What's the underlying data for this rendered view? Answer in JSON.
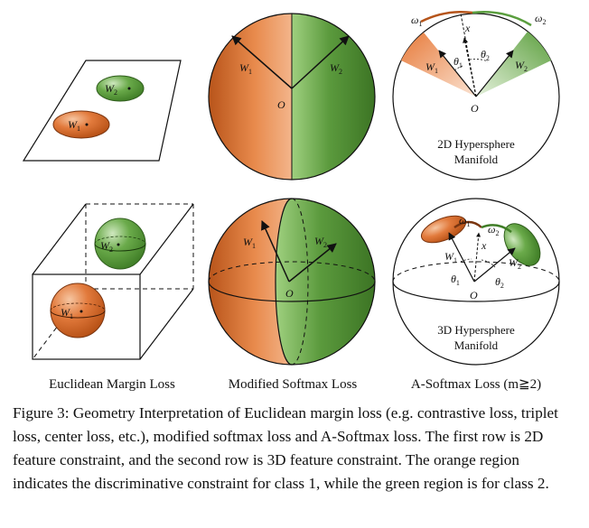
{
  "panels": {
    "col1_label": "Euclidean Margin Loss",
    "col2_label": "Modified Softmax Loss",
    "col3_label": "A-Softmax Loss (m≧2)",
    "manifold_2d": [
      "2D Hypersphere",
      "Manifold"
    ],
    "manifold_3d": [
      "3D Hypersphere",
      "Manifold"
    ]
  },
  "symbols": {
    "W": "W",
    "O": "O",
    "x": "x",
    "omega": "ω",
    "theta": "θ",
    "sub1": "1",
    "sub2": "2"
  },
  "colors": {
    "class1_orange": "#d9692a",
    "class2_green": "#5a9e3e"
  },
  "caption": {
    "label": "Figure 3:",
    "text": "Geometry Interpretation of Euclidean margin loss (e.g. contrastive loss, triplet loss, center loss, etc.), modified softmax loss and A-Softmax loss. The first row is 2D feature constraint, and the second row is 3D feature constraint. The orange region indicates the discriminative constraint for class 1, while the green region is for class 2."
  }
}
